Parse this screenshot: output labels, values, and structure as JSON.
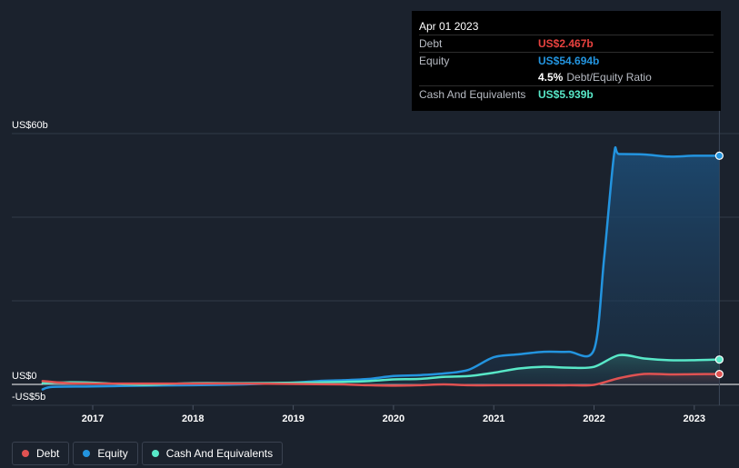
{
  "tooltip": {
    "date": "Apr 01 2023",
    "debt_label": "Debt",
    "debt_value": "US$2.467b",
    "equity_label": "Equity",
    "equity_value": "US$54.694b",
    "ratio_value": "4.5%",
    "ratio_label": "Debt/Equity Ratio",
    "cash_label": "Cash And Equivalents",
    "cash_value": "US$5.939b"
  },
  "legend": [
    {
      "label": "Debt",
      "color": "#e05252"
    },
    {
      "label": "Equity",
      "color": "#2394df"
    },
    {
      "label": "Cash And Equivalents",
      "color": "#58e8c8"
    }
  ],
  "colors": {
    "debt": "#e05252",
    "equity": "#2394df",
    "cash": "#58e8c8",
    "background": "#1b222d"
  },
  "chart_data": {
    "type": "line",
    "title": "",
    "ylim": [
      -5,
      60
    ],
    "y_tick_labels": [
      "US$60b",
      "US$0",
      "-US$5b"
    ],
    "x_tick_labels": [
      "2017",
      "2018",
      "2019",
      "2020",
      "2021",
      "2022",
      "2023"
    ],
    "xlim": [
      2016.5,
      2023.5
    ],
    "grid": true,
    "series": [
      {
        "name": "Debt",
        "color": "#e05252",
        "points": [
          [
            2016.5,
            0.8
          ],
          [
            2016.75,
            0.3
          ],
          [
            2017.0,
            0.2
          ],
          [
            2017.5,
            0.2
          ],
          [
            2018.0,
            0.2
          ],
          [
            2018.5,
            0.2
          ],
          [
            2019.0,
            0.1
          ],
          [
            2019.5,
            0.0
          ],
          [
            2019.75,
            -0.2
          ],
          [
            2020.0,
            -0.3
          ],
          [
            2020.25,
            -0.2
          ],
          [
            2020.5,
            0.0
          ],
          [
            2020.75,
            -0.2
          ],
          [
            2021.0,
            -0.2
          ],
          [
            2021.5,
            -0.2
          ],
          [
            2021.75,
            -0.2
          ],
          [
            2022.0,
            -0.1
          ],
          [
            2022.25,
            1.5
          ],
          [
            2022.5,
            2.5
          ],
          [
            2022.75,
            2.4
          ],
          [
            2023.0,
            2.45
          ],
          [
            2023.25,
            2.467
          ]
        ]
      },
      {
        "name": "Equity",
        "color": "#2394df",
        "points": [
          [
            2016.5,
            -1.2
          ],
          [
            2016.6,
            -0.6
          ],
          [
            2017.0,
            -0.5
          ],
          [
            2017.5,
            -0.3
          ],
          [
            2018.0,
            -0.2
          ],
          [
            2018.5,
            0.0
          ],
          [
            2019.0,
            0.4
          ],
          [
            2019.25,
            0.8
          ],
          [
            2019.5,
            1.0
          ],
          [
            2019.75,
            1.3
          ],
          [
            2020.0,
            2.0
          ],
          [
            2020.25,
            2.2
          ],
          [
            2020.5,
            2.6
          ],
          [
            2020.75,
            3.5
          ],
          [
            2021.0,
            6.5
          ],
          [
            2021.25,
            7.2
          ],
          [
            2021.5,
            7.8
          ],
          [
            2021.75,
            7.8
          ],
          [
            2022.0,
            8.3
          ],
          [
            2022.1,
            30.0
          ],
          [
            2022.2,
            55.0
          ],
          [
            2022.25,
            55.1
          ],
          [
            2022.5,
            55.0
          ],
          [
            2022.75,
            54.5
          ],
          [
            2023.0,
            54.7
          ],
          [
            2023.25,
            54.694
          ]
        ]
      },
      {
        "name": "Cash And Equivalents",
        "color": "#58e8c8",
        "points": [
          [
            2016.5,
            0.3
          ],
          [
            2016.75,
            0.5
          ],
          [
            2017.0,
            0.4
          ],
          [
            2017.5,
            -0.1
          ],
          [
            2018.0,
            0.3
          ],
          [
            2018.5,
            0.3
          ],
          [
            2019.0,
            0.4
          ],
          [
            2019.5,
            0.6
          ],
          [
            2019.75,
            0.8
          ],
          [
            2020.0,
            1.2
          ],
          [
            2020.25,
            1.3
          ],
          [
            2020.5,
            1.8
          ],
          [
            2020.75,
            2.0
          ],
          [
            2021.0,
            2.8
          ],
          [
            2021.25,
            3.8
          ],
          [
            2021.5,
            4.2
          ],
          [
            2021.75,
            4.0
          ],
          [
            2022.0,
            4.2
          ],
          [
            2022.25,
            7.0
          ],
          [
            2022.5,
            6.2
          ],
          [
            2022.75,
            5.8
          ],
          [
            2023.0,
            5.8
          ],
          [
            2023.25,
            5.939
          ]
        ]
      }
    ]
  }
}
